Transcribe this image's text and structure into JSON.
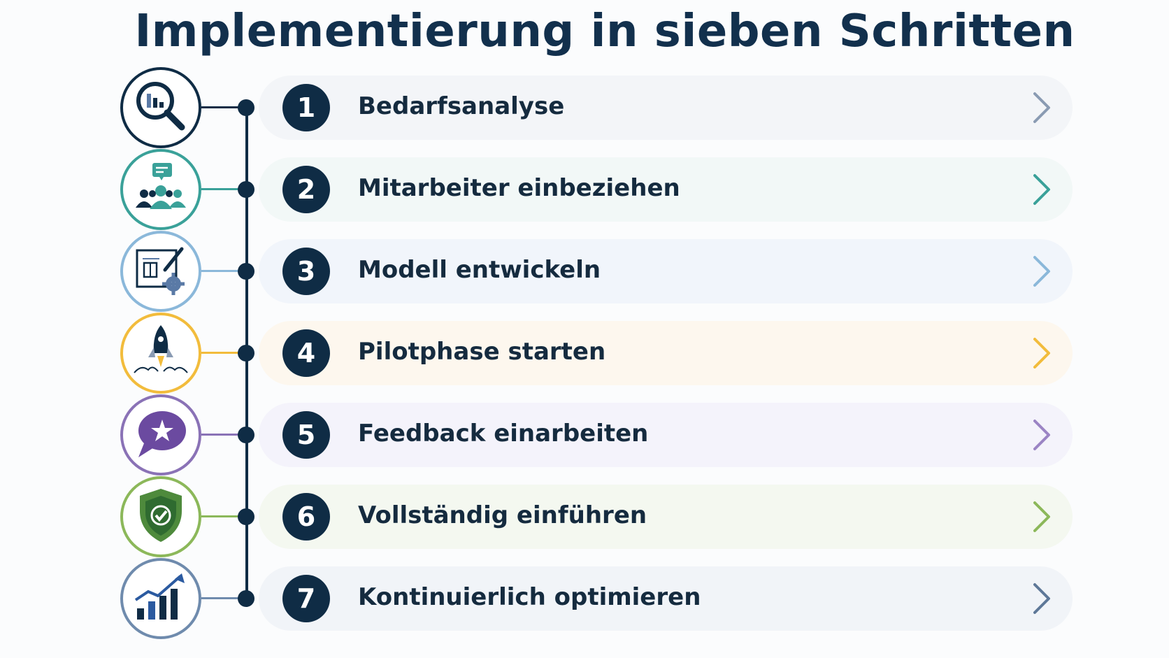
{
  "title": "Implementierung in sieben Schritten",
  "steps": [
    {
      "number": "1",
      "label": "Bedarfsanalyse",
      "icon": "magnifier-chart-icon",
      "color": "#0f2c45",
      "accent": "#8a9bb3",
      "bg": "#f3f5f8"
    },
    {
      "number": "2",
      "label": "Mitarbeiter einbeziehen",
      "icon": "team-chat-icon",
      "color": "#3aa199",
      "accent": "#3aa199",
      "bg": "#f2f8f7"
    },
    {
      "number": "3",
      "label": "Modell entwickeln",
      "icon": "blueprint-gear-icon",
      "color": "#8bb8da",
      "accent": "#8bb8da",
      "bg": "#f1f5fb"
    },
    {
      "number": "4",
      "label": "Pilotphase starten",
      "icon": "rocket-icon",
      "color": "#f2bc3c",
      "accent": "#f2bc3c",
      "bg": "#fdf7ee"
    },
    {
      "number": "5",
      "label": "Feedback einarbeiten",
      "icon": "star-speech-bubble-icon",
      "color": "#8a72b6",
      "accent": "#9b84c4",
      "bg": "#f4f3fb"
    },
    {
      "number": "6",
      "label": "Vollständig einführen",
      "icon": "shield-check-icon",
      "color": "#8cb85a",
      "accent": "#8cb85a",
      "bg": "#f4f8f0"
    },
    {
      "number": "7",
      "label": "Kontinuierlich optimieren",
      "icon": "growth-chart-icon",
      "color": "#6f8bad",
      "accent": "#5e7898",
      "bg": "#f1f4f8"
    }
  ]
}
